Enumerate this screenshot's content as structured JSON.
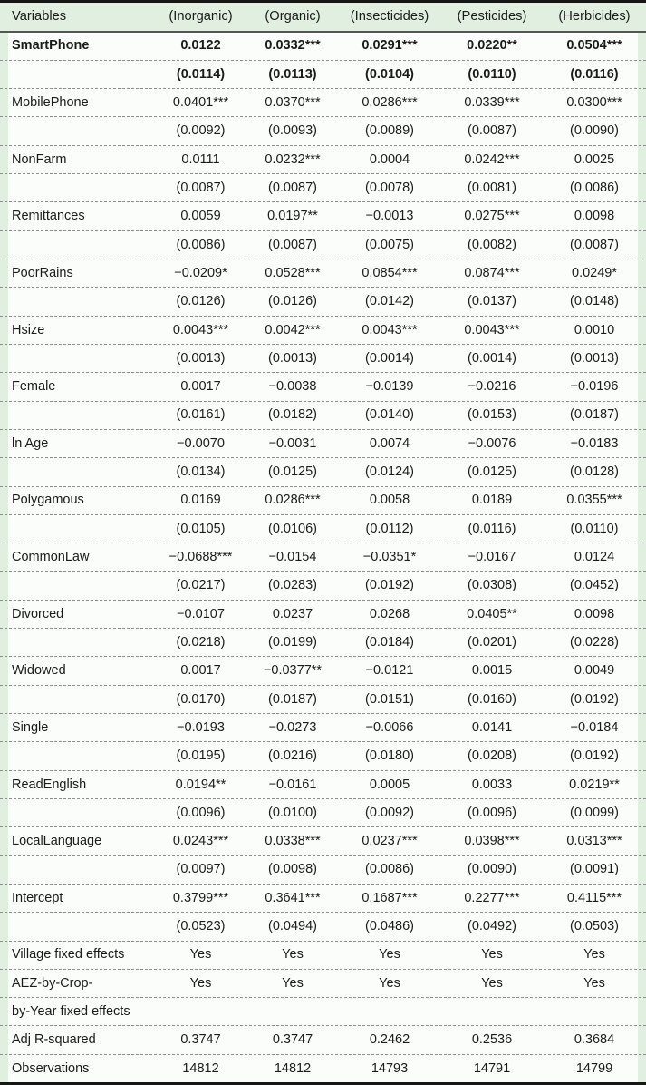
{
  "table": {
    "columns": [
      "Variables",
      "(Inorganic)",
      "(Organic)",
      "(Insecticides)",
      "(Pesticides)",
      "(Herbicides)"
    ],
    "rows": [
      {
        "label": "SmartPhone",
        "bold": true,
        "coef": [
          "0.0122",
          "0.0332***",
          "0.0291***",
          "0.0220**",
          "0.0504***"
        ],
        "se": [
          "(0.0114)",
          "(0.0113)",
          "(0.0104)",
          "(0.0110)",
          "(0.0116)"
        ]
      },
      {
        "label": "MobilePhone",
        "bold": false,
        "coef": [
          "0.0401***",
          "0.0370***",
          "0.0286***",
          "0.0339***",
          "0.0300***"
        ],
        "se": [
          "(0.0092)",
          "(0.0093)",
          "(0.0089)",
          "(0.0087)",
          "(0.0090)"
        ]
      },
      {
        "label": "NonFarm",
        "bold": false,
        "coef": [
          "0.0111",
          "0.0232***",
          "0.0004",
          "0.0242***",
          "0.0025"
        ],
        "se": [
          "(0.0087)",
          "(0.0087)",
          "(0.0078)",
          "(0.0081)",
          "(0.0086)"
        ]
      },
      {
        "label": "Remittances",
        "bold": false,
        "coef": [
          "0.0059",
          "0.0197**",
          "−0.0013",
          "0.0275***",
          "0.0098"
        ],
        "se": [
          "(0.0086)",
          "(0.0087)",
          "(0.0075)",
          "(0.0082)",
          "(0.0087)"
        ]
      },
      {
        "label": "PoorRains",
        "bold": false,
        "coef": [
          "−0.0209*",
          "0.0528***",
          "0.0854***",
          "0.0874***",
          "0.0249*"
        ],
        "se": [
          "(0.0126)",
          "(0.0126)",
          "(0.0142)",
          "(0.0137)",
          "(0.0148)"
        ]
      },
      {
        "label": "Hsize",
        "bold": false,
        "coef": [
          "0.0043***",
          "0.0042***",
          "0.0043***",
          "0.0043***",
          "0.0010"
        ],
        "se": [
          "(0.0013)",
          "(0.0013)",
          "(0.0014)",
          "(0.0014)",
          "(0.0013)"
        ]
      },
      {
        "label": "Female",
        "bold": false,
        "coef": [
          "0.0017",
          "−0.0038",
          "−0.0139",
          "−0.0216",
          "−0.0196"
        ],
        "se": [
          "(0.0161)",
          "(0.0182)",
          "(0.0140)",
          "(0.0153)",
          "(0.0187)"
        ]
      },
      {
        "label": "ln Age",
        "bold": false,
        "coef": [
          "−0.0070",
          "−0.0031",
          "0.0074",
          "−0.0076",
          "−0.0183"
        ],
        "se": [
          "(0.0134)",
          "(0.0125)",
          "(0.0124)",
          "(0.0125)",
          "(0.0128)"
        ]
      },
      {
        "label": "Polygamous",
        "bold": false,
        "coef": [
          "0.0169",
          "0.0286***",
          "0.0058",
          "0.0189",
          "0.0355***"
        ],
        "se": [
          "(0.0105)",
          "(0.0106)",
          "(0.0112)",
          "(0.0116)",
          "(0.0110)"
        ]
      },
      {
        "label": "CommonLaw",
        "bold": false,
        "coef": [
          "−0.0688***",
          "−0.0154",
          "−0.0351*",
          "−0.0167",
          "0.0124"
        ],
        "se": [
          "(0.0217)",
          "(0.0283)",
          "(0.0192)",
          "(0.0308)",
          "(0.0452)"
        ]
      },
      {
        "label": "Divorced",
        "bold": false,
        "coef": [
          "−0.0107",
          "0.0237",
          "0.0268",
          "0.0405**",
          "0.0098"
        ],
        "se": [
          "(0.0218)",
          "(0.0199)",
          "(0.0184)",
          "(0.0201)",
          "(0.0228)"
        ]
      },
      {
        "label": "Widowed",
        "bold": false,
        "coef": [
          "0.0017",
          "−0.0377**",
          "−0.0121",
          "0.0015",
          "0.0049"
        ],
        "se": [
          "(0.0170)",
          "(0.0187)",
          "(0.0151)",
          "(0.0160)",
          "(0.0192)"
        ]
      },
      {
        "label": "Single",
        "bold": false,
        "coef": [
          "−0.0193",
          "−0.0273",
          "−0.0066",
          "0.0141",
          "−0.0184"
        ],
        "se": [
          "(0.0195)",
          "(0.0216)",
          "(0.0180)",
          "(0.0208)",
          "(0.0192)"
        ]
      },
      {
        "label": "ReadEnglish",
        "bold": false,
        "coef": [
          "0.0194**",
          "−0.0161",
          "0.0005",
          "0.0033",
          "0.0219**"
        ],
        "se": [
          "(0.0096)",
          "(0.0100)",
          "(0.0092)",
          "(0.0096)",
          "(0.0099)"
        ]
      },
      {
        "label": "LocalLanguage",
        "bold": false,
        "coef": [
          "0.0243***",
          "0.0338***",
          "0.0237***",
          "0.0398***",
          "0.0313***"
        ],
        "se": [
          "(0.0097)",
          "(0.0098)",
          "(0.0086)",
          "(0.0090)",
          "(0.0091)"
        ]
      },
      {
        "label": "Intercept",
        "bold": false,
        "coef": [
          "0.3799***",
          "0.3641***",
          "0.1687***",
          "0.2277***",
          "0.4115***"
        ],
        "se": [
          "(0.0523)",
          "(0.0494)",
          "(0.0486)",
          "(0.0492)",
          "(0.0503)"
        ]
      }
    ],
    "footer": [
      {
        "label": "Village fixed effects",
        "values": [
          "Yes",
          "Yes",
          "Yes",
          "Yes",
          "Yes"
        ]
      },
      {
        "label": "AEZ-by-Crop-",
        "values": [
          "Yes",
          "Yes",
          "Yes",
          "Yes",
          "Yes"
        ]
      },
      {
        "label": "by-Year fixed effects",
        "values": [
          "",
          "",
          "",
          "",
          ""
        ]
      },
      {
        "label": "Adj R-squared",
        "values": [
          "0.3747",
          "0.3747",
          "0.2462",
          "0.2536",
          "0.3684"
        ]
      },
      {
        "label": "Observations",
        "values": [
          "14812",
          "14812",
          "14793",
          "14791",
          "14799"
        ]
      }
    ],
    "colors": {
      "page_green": "#e0efdf",
      "row_white": "#fbfdfa",
      "border_black": "#161616",
      "header_rule": "#565656",
      "dash_gray": "#8f8f8f",
      "text": "#1b1b1b"
    }
  }
}
